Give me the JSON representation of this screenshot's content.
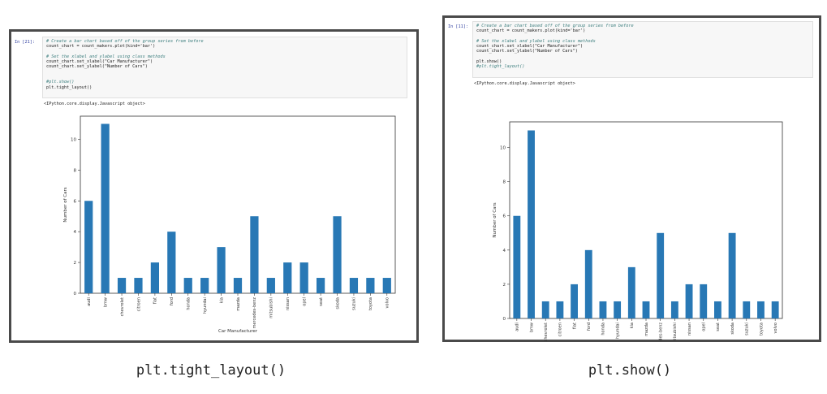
{
  "panels": [
    {
      "prompt": "In [21]:",
      "code": [
        {
          "text": "# Create a bar chart based off of the group series from before",
          "kind": "comment"
        },
        {
          "text": "count_chart = count_makers.plot(kind='bar')",
          "kind": "code"
        },
        {
          "text": "",
          "kind": "code"
        },
        {
          "text": "# Set the xlabel and ylabel using class methods",
          "kind": "comment"
        },
        {
          "text": "count_chart.set_xlabel(\"Car Manufacturer\")",
          "kind": "code"
        },
        {
          "text": "count_chart.set_ylabel(\"Number of Cars\")",
          "kind": "code"
        },
        {
          "text": "",
          "kind": "code"
        },
        {
          "text": "",
          "kind": "code"
        },
        {
          "text": "#plt.show()",
          "kind": "comment"
        },
        {
          "text": "plt.tight_layout()",
          "kind": "code"
        }
      ],
      "output": "<IPython.core.display.Javascript object>",
      "caption": "plt.tight_layout()"
    },
    {
      "prompt": "In [11]:",
      "code": [
        {
          "text": "# Create a bar chart based off of the group series from before",
          "kind": "comment"
        },
        {
          "text": "count_chart = count_makers.plot(kind='bar')",
          "kind": "code"
        },
        {
          "text": "",
          "kind": "code"
        },
        {
          "text": "# Set the xlabel and ylabel using class methods",
          "kind": "comment"
        },
        {
          "text": "count_chart.set_xlabel(\"Car Manufacturer\")",
          "kind": "code"
        },
        {
          "text": "count_chart.set_ylabel(\"Number of Cars\")",
          "kind": "code"
        },
        {
          "text": "",
          "kind": "code"
        },
        {
          "text": "plt.show()",
          "kind": "code"
        },
        {
          "text": "#plt.tight_layout()",
          "kind": "comment"
        }
      ],
      "output": "<IPython.core.display.Javascript object>",
      "caption": "plt.show()"
    }
  ],
  "colors": {
    "bar": "#2878b5",
    "frame": "#4a4a4a"
  },
  "chart_data": [
    {
      "type": "bar",
      "categories": [
        "audi",
        "bmw",
        "chevrolet",
        "citroen",
        "fiat",
        "ford",
        "honda",
        "hyundai",
        "kia",
        "mazda",
        "mercedes-benz",
        "mitsubishi",
        "nissan",
        "opel",
        "seat",
        "skoda",
        "suzuki",
        "toyota",
        "volvo"
      ],
      "values": [
        6,
        11,
        1,
        1,
        2,
        4,
        1,
        1,
        3,
        1,
        5,
        1,
        2,
        2,
        1,
        5,
        1,
        1,
        1
      ],
      "xlabel": "Car Manufacturer",
      "ylabel": "Number of Cars",
      "ylim": [
        0,
        11.5
      ],
      "yticks": [
        0,
        2,
        4,
        6,
        8,
        10
      ],
      "grid": false
    },
    {
      "type": "bar",
      "categories": [
        "audi",
        "bmw",
        "chevrolet",
        "citroen",
        "fiat",
        "ford",
        "honda",
        "hyundai",
        "kia",
        "mazda",
        "mercedes-benz",
        "mitsubishi",
        "nissan",
        "opel",
        "seat",
        "skoda",
        "suzuki",
        "toyota",
        "volvo"
      ],
      "values": [
        6,
        11,
        1,
        1,
        2,
        4,
        1,
        1,
        3,
        1,
        5,
        1,
        2,
        2,
        1,
        5,
        1,
        1,
        1
      ],
      "xlabel": "",
      "ylabel": "Number of Cars",
      "ylim": [
        0,
        11.5
      ],
      "yticks": [
        0,
        2,
        4,
        6,
        8,
        10
      ],
      "grid": false
    }
  ]
}
